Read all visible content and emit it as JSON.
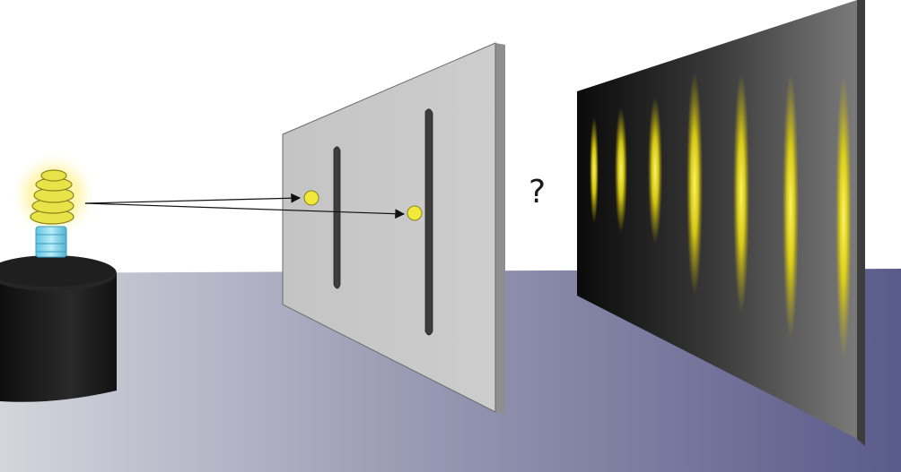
{
  "annotation": {
    "question_mark": "?"
  },
  "colors": {
    "background": "#ffffff",
    "floor_light": "#d2d3da",
    "floor_dark": "#585a88",
    "barrier_plate": "#c7c7c7",
    "slit": "#3a3a3a",
    "screen_dark": "#0d0d0d",
    "screen_light": "#777777",
    "photon": "#f2e83a",
    "fringe": "#f4ec2a",
    "pedestal": "#1b1b1b",
    "bulb_glow": "#fff39a",
    "bulb_base": "#8fd8ec"
  },
  "icons": [
    "light-bulb-icon",
    "photon-icon",
    "arrow-icon"
  ]
}
